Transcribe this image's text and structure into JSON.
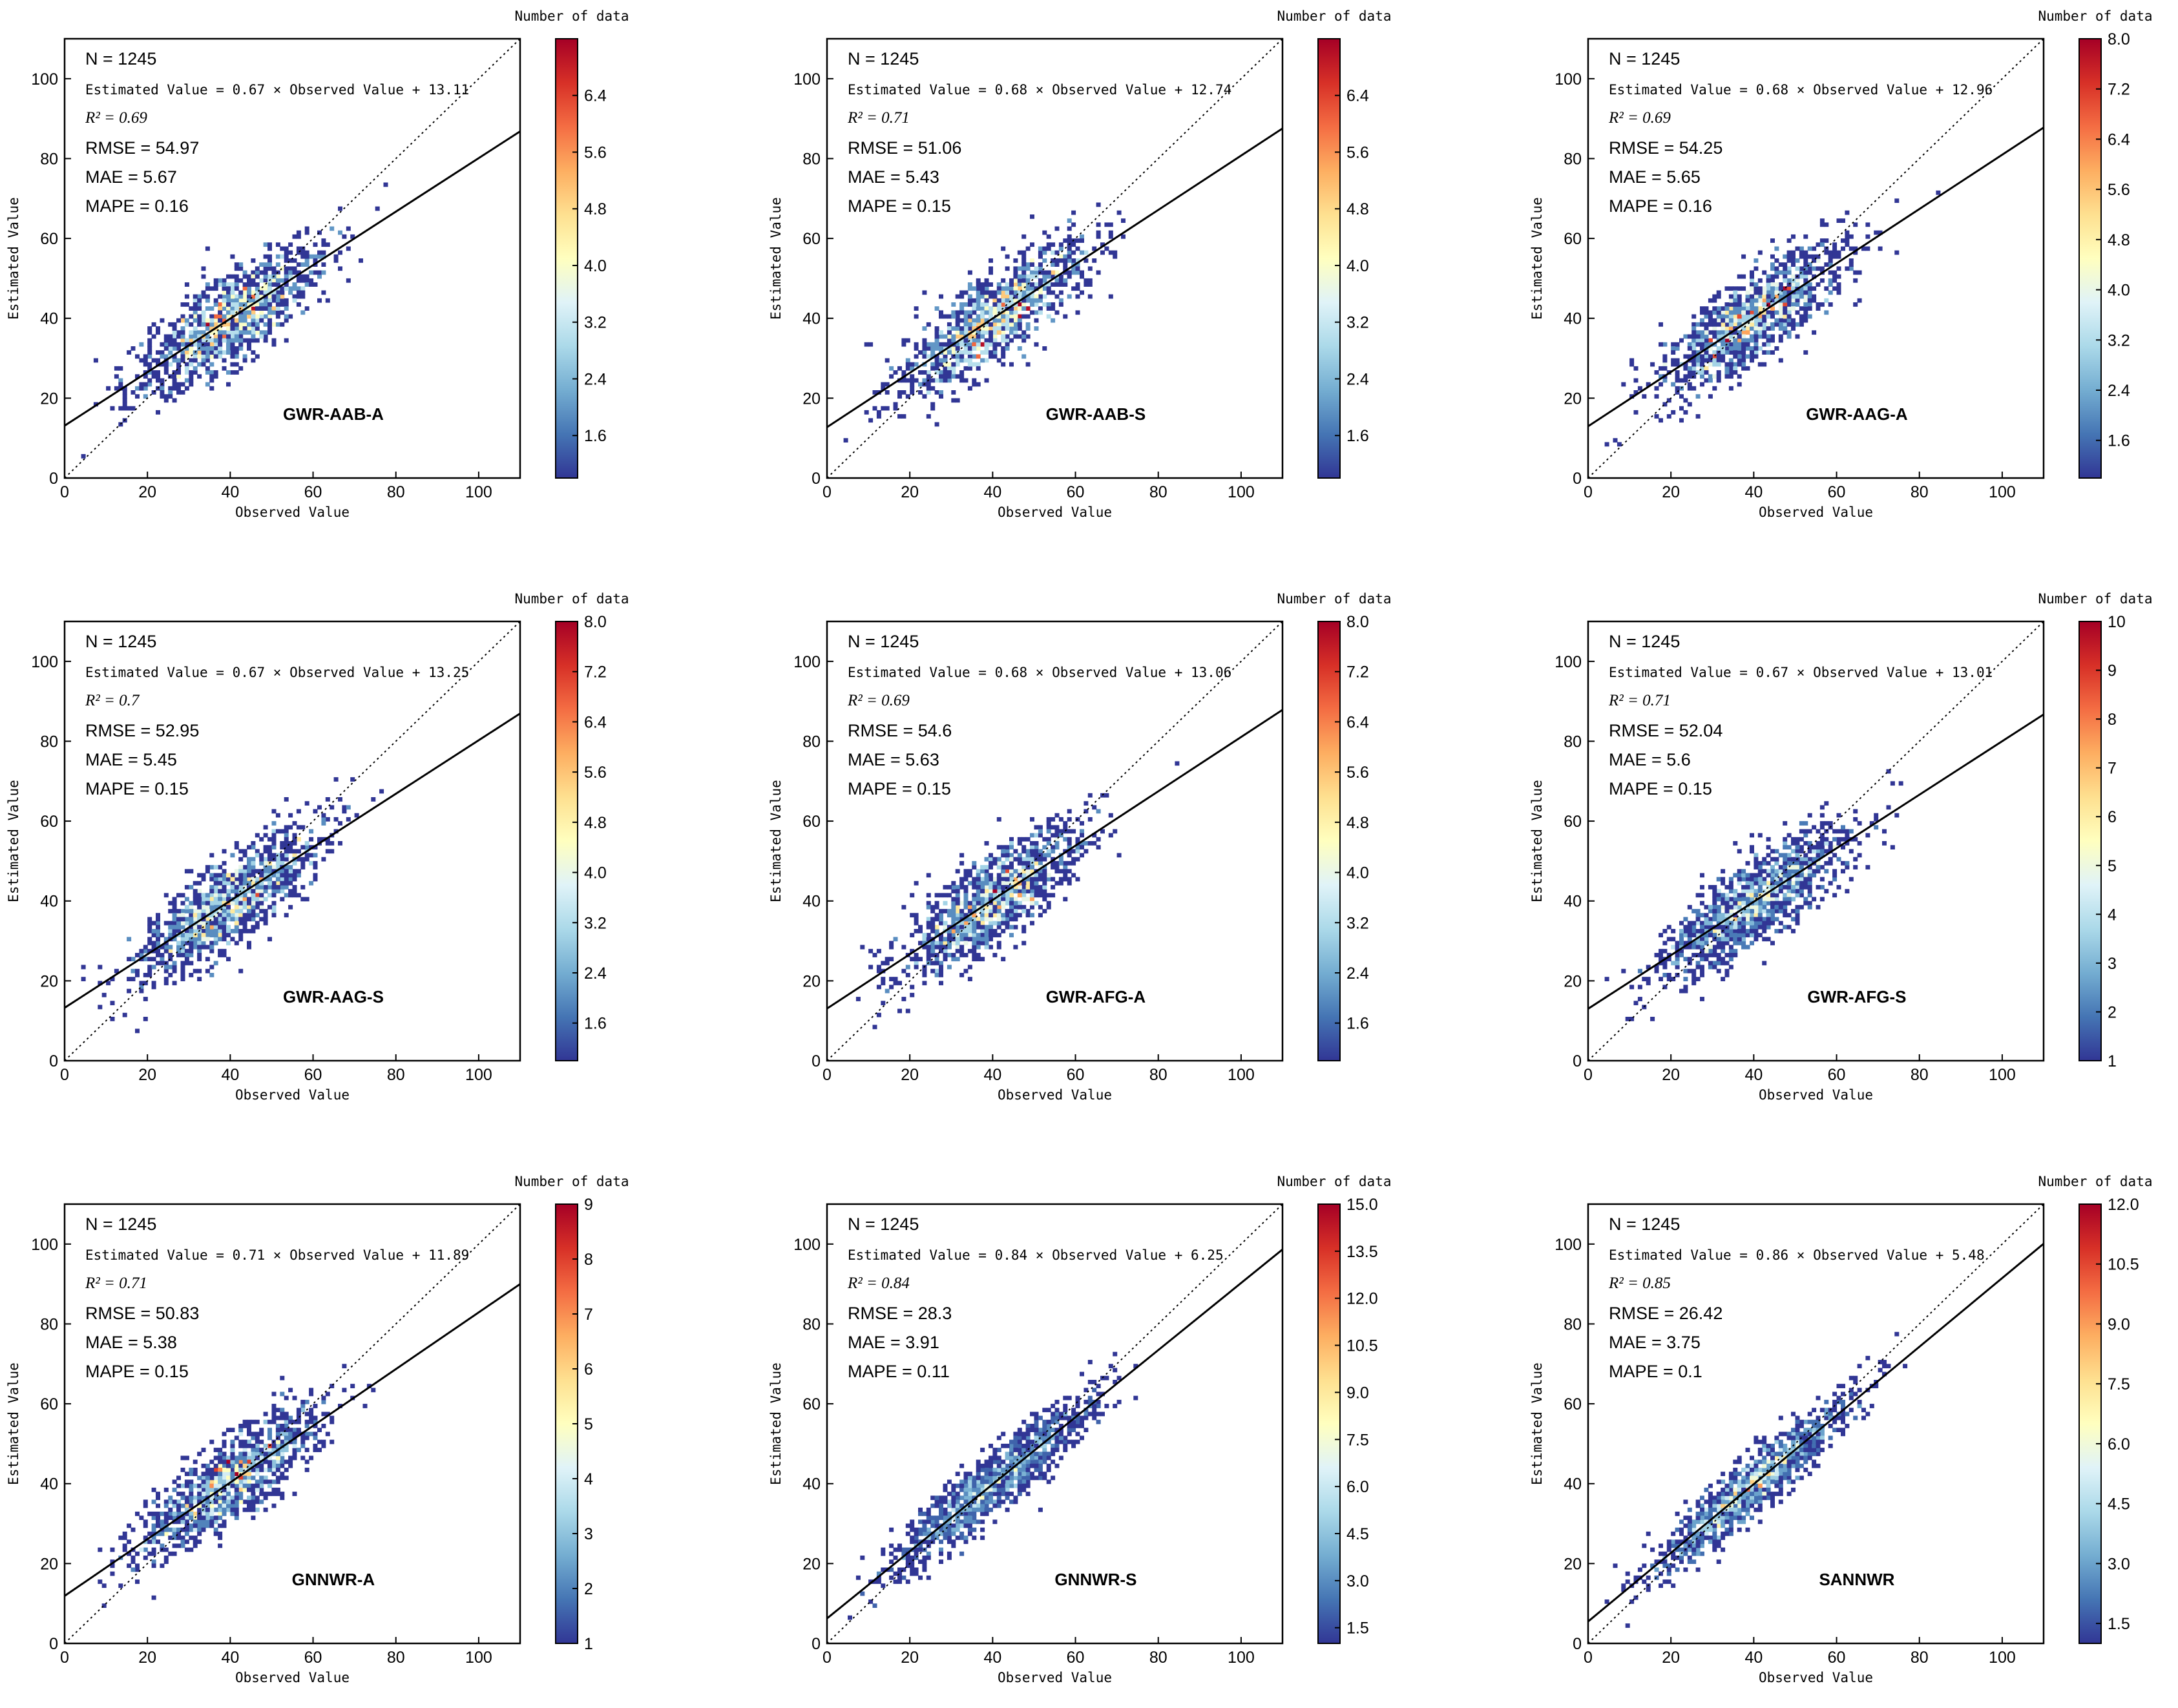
{
  "figure": {
    "x_axis_label": "Observed Value",
    "y_axis_label": "Estimated Value",
    "colorbar_title": "Number of data",
    "colormap": [
      "#313695",
      "#4575b4",
      "#74add1",
      "#abd9e9",
      "#e0f3f8",
      "#ffffbf",
      "#fee090",
      "#fdae61",
      "#f46d43",
      "#d73027",
      "#a50026"
    ],
    "reference_line": "1:1 dotted"
  },
  "chart_data": [
    {
      "type": "heatmap",
      "model": "GWR-AAB-A",
      "n_label": "N = 1245",
      "equation_label": "Estimated Value = 0.67 × Observed Value + 13.11",
      "r2_label": "R² = 0.69",
      "rmse_label": "RMSE = 54.97",
      "mae_label": "MAE = 5.67",
      "mape_label": "MAPE = 0.16",
      "fit": {
        "slope": 0.67,
        "intercept": 13.11
      },
      "xlim": [
        0,
        110
      ],
      "ylim": [
        0,
        110
      ],
      "xticks": [
        0,
        20,
        40,
        60,
        80,
        100
      ],
      "yticks": [
        0,
        20,
        40,
        60,
        80,
        100
      ],
      "colorbar": {
        "min": 1,
        "max": 7.2,
        "ticks": [
          "1.6",
          "2.4",
          "3.2",
          "4.0",
          "4.8",
          "5.6",
          "6.4"
        ]
      },
      "density": {
        "center": [
          40,
          40
        ],
        "spread": 11,
        "scatter": 5.5
      }
    },
    {
      "type": "heatmap",
      "model": "GWR-AAB-S",
      "n_label": "N = 1245",
      "equation_label": "Estimated Value = 0.68 × Observed Value + 12.74",
      "r2_label": "R² = 0.71",
      "rmse_label": "RMSE = 51.06",
      "mae_label": "MAE = 5.43",
      "mape_label": "MAPE = 0.15",
      "fit": {
        "slope": 0.68,
        "intercept": 12.74
      },
      "xlim": [
        0,
        110
      ],
      "ylim": [
        0,
        110
      ],
      "xticks": [
        0,
        20,
        40,
        60,
        80,
        100
      ],
      "yticks": [
        0,
        20,
        40,
        60,
        80,
        100
      ],
      "colorbar": {
        "min": 1,
        "max": 7.2,
        "ticks": [
          "1.6",
          "2.4",
          "3.2",
          "4.0",
          "4.8",
          "5.6",
          "6.4"
        ]
      },
      "density": {
        "center": [
          40,
          40
        ],
        "spread": 11,
        "scatter": 5.3
      }
    },
    {
      "type": "heatmap",
      "model": "GWR-AAG-A",
      "n_label": "N = 1245",
      "equation_label": "Estimated Value = 0.68 × Observed Value + 12.96",
      "r2_label": "R² = 0.69",
      "rmse_label": "RMSE = 54.25",
      "mae_label": "MAE = 5.65",
      "mape_label": "MAPE = 0.16",
      "fit": {
        "slope": 0.68,
        "intercept": 12.96
      },
      "xlim": [
        0,
        110
      ],
      "ylim": [
        0,
        110
      ],
      "xticks": [
        0,
        20,
        40,
        60,
        80,
        100
      ],
      "yticks": [
        0,
        20,
        40,
        60,
        80,
        100
      ],
      "colorbar": {
        "min": 1,
        "max": 8.0,
        "ticks": [
          "1.6",
          "2.4",
          "3.2",
          "4.0",
          "4.8",
          "5.6",
          "6.4",
          "7.2",
          "8.0"
        ]
      },
      "density": {
        "center": [
          40,
          40
        ],
        "spread": 11,
        "scatter": 5.5
      }
    },
    {
      "type": "heatmap",
      "model": "GWR-AAG-S",
      "n_label": "N = 1245",
      "equation_label": "Estimated Value = 0.67 × Observed Value + 13.25",
      "r2_label": "R² = 0.7",
      "rmse_label": "RMSE = 52.95",
      "mae_label": "MAE = 5.45",
      "mape_label": "MAPE = 0.15",
      "fit": {
        "slope": 0.67,
        "intercept": 13.25
      },
      "xlim": [
        0,
        110
      ],
      "ylim": [
        0,
        110
      ],
      "xticks": [
        0,
        20,
        40,
        60,
        80,
        100
      ],
      "yticks": [
        0,
        20,
        40,
        60,
        80,
        100
      ],
      "colorbar": {
        "min": 1,
        "max": 8.0,
        "ticks": [
          "1.6",
          "2.4",
          "3.2",
          "4.0",
          "4.8",
          "5.6",
          "6.4",
          "7.2",
          "8.0"
        ]
      },
      "density": {
        "center": [
          40,
          40
        ],
        "spread": 11,
        "scatter": 5.4
      }
    },
    {
      "type": "heatmap",
      "model": "GWR-AFG-A",
      "n_label": "N = 1245",
      "equation_label": "Estimated Value = 0.68 × Observed Value + 13.06",
      "r2_label": "R² = 0.69",
      "rmse_label": "RMSE = 54.6",
      "mae_label": "MAE = 5.63",
      "mape_label": "MAPE = 0.15",
      "fit": {
        "slope": 0.68,
        "intercept": 13.06
      },
      "xlim": [
        0,
        110
      ],
      "ylim": [
        0,
        110
      ],
      "xticks": [
        0,
        20,
        40,
        60,
        80,
        100
      ],
      "yticks": [
        0,
        20,
        40,
        60,
        80,
        100
      ],
      "colorbar": {
        "min": 1,
        "max": 8.0,
        "ticks": [
          "1.6",
          "2.4",
          "3.2",
          "4.0",
          "4.8",
          "5.6",
          "6.4",
          "7.2",
          "8.0"
        ]
      },
      "density": {
        "center": [
          40,
          40
        ],
        "spread": 11,
        "scatter": 5.5
      }
    },
    {
      "type": "heatmap",
      "model": "GWR-AFG-S",
      "n_label": "N = 1245",
      "equation_label": "Estimated Value = 0.67 × Observed Value + 13.01",
      "r2_label": "R² = 0.71",
      "rmse_label": "RMSE = 52.04",
      "mae_label": "MAE = 5.6",
      "mape_label": "MAPE = 0.15",
      "fit": {
        "slope": 0.67,
        "intercept": 13.01
      },
      "xlim": [
        0,
        110
      ],
      "ylim": [
        0,
        110
      ],
      "xticks": [
        0,
        20,
        40,
        60,
        80,
        100
      ],
      "yticks": [
        0,
        20,
        40,
        60,
        80,
        100
      ],
      "colorbar": {
        "min": 1,
        "max": 10,
        "ticks": [
          "1",
          "2",
          "3",
          "4",
          "5",
          "6",
          "7",
          "8",
          "9",
          "10"
        ]
      },
      "density": {
        "center": [
          40,
          40
        ],
        "spread": 11,
        "scatter": 5.3
      }
    },
    {
      "type": "heatmap",
      "model": "GNNWR-A",
      "n_label": "N = 1245",
      "equation_label": "Estimated Value = 0.71 × Observed Value + 11.89",
      "r2_label": "R² = 0.71",
      "rmse_label": "RMSE = 50.83",
      "mae_label": "MAE = 5.38",
      "mape_label": "MAPE = 0.15",
      "fit": {
        "slope": 0.71,
        "intercept": 11.89
      },
      "xlim": [
        0,
        110
      ],
      "ylim": [
        0,
        110
      ],
      "xticks": [
        0,
        20,
        40,
        60,
        80,
        100
      ],
      "yticks": [
        0,
        20,
        40,
        60,
        80,
        100
      ],
      "colorbar": {
        "min": 1,
        "max": 9,
        "ticks": [
          "1",
          "2",
          "3",
          "4",
          "5",
          "6",
          "7",
          "8",
          "9"
        ]
      },
      "density": {
        "center": [
          40,
          40
        ],
        "spread": 11,
        "scatter": 5.2
      }
    },
    {
      "type": "heatmap",
      "model": "GNNWR-S",
      "n_label": "N = 1245",
      "equation_label": "Estimated Value = 0.84 × Observed Value + 6.25",
      "r2_label": "R² = 0.84",
      "rmse_label": "RMSE = 28.3",
      "mae_label": "MAE = 3.91",
      "mape_label": "MAPE = 0.11",
      "fit": {
        "slope": 0.84,
        "intercept": 6.25
      },
      "xlim": [
        0,
        110
      ],
      "ylim": [
        0,
        110
      ],
      "xticks": [
        0,
        20,
        40,
        60,
        80,
        100
      ],
      "yticks": [
        0,
        20,
        40,
        60,
        80,
        100
      ],
      "colorbar": {
        "min": 1,
        "max": 15.0,
        "ticks": [
          "1.5",
          "3.0",
          "4.5",
          "6.0",
          "7.5",
          "9.0",
          "10.5",
          "12.0",
          "13.5",
          "15.0"
        ]
      },
      "density": {
        "center": [
          40,
          40
        ],
        "spread": 12,
        "scatter": 3.8
      }
    },
    {
      "type": "heatmap",
      "model": "SANNWR",
      "n_label": "N = 1245",
      "equation_label": "Estimated Value = 0.86 × Observed Value + 5.48",
      "r2_label": "R² = 0.85",
      "rmse_label": "RMSE = 26.42",
      "mae_label": "MAE = 3.75",
      "mape_label": "MAPE = 0.1",
      "fit": {
        "slope": 0.86,
        "intercept": 5.48
      },
      "xlim": [
        0,
        110
      ],
      "ylim": [
        0,
        110
      ],
      "xticks": [
        0,
        20,
        40,
        60,
        80,
        100
      ],
      "yticks": [
        0,
        20,
        40,
        60,
        80,
        100
      ],
      "colorbar": {
        "min": 1,
        "max": 12.0,
        "ticks": [
          "1.5",
          "3.0",
          "4.5",
          "6.0",
          "7.5",
          "9.0",
          "10.5",
          "12.0"
        ]
      },
      "density": {
        "center": [
          40,
          40
        ],
        "spread": 12,
        "scatter": 3.7
      }
    }
  ]
}
